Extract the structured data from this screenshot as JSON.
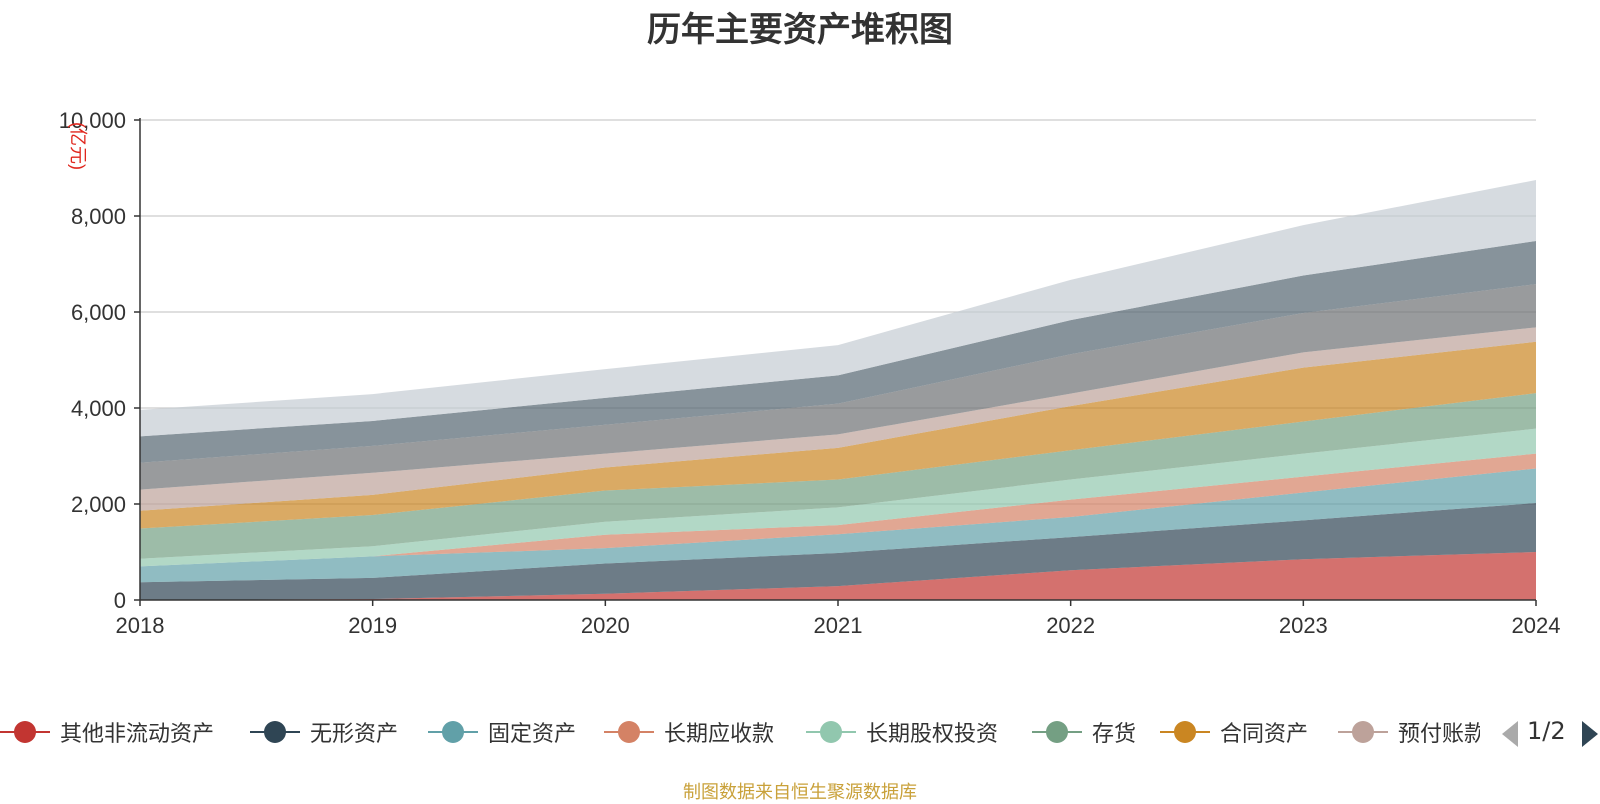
{
  "title": "历年主要资产堆积图",
  "footer": "制图数据来自恒生聚源数据库",
  "legend_page": "1/2",
  "chart_data": {
    "type": "area",
    "stacked": true,
    "title": "历年主要资产堆积图",
    "ylabel": "(亿元)",
    "xlabel": "",
    "x": [
      "2018",
      "2019",
      "2020",
      "2021",
      "2022",
      "2023",
      "2024"
    ],
    "ylim": [
      0,
      10000
    ],
    "yticks": [
      0,
      2000,
      4000,
      6000,
      8000,
      10000
    ],
    "ytick_labels": [
      "0",
      "2,000",
      "4,000",
      "6,000",
      "8,000",
      "10,000"
    ],
    "grid": true,
    "legend_position": "bottom",
    "series": [
      {
        "name": "其他非流动资产",
        "values": [
          0,
          20,
          130,
          290,
          620,
          850,
          1000
        ],
        "color": "#c23531",
        "in_legend": true
      },
      {
        "name": "无形资产",
        "values": [
          370,
          440,
          630,
          690,
          690,
          810,
          1020
        ],
        "color": "#2f4554",
        "in_legend": true
      },
      {
        "name": "固定资产",
        "values": [
          330,
          450,
          320,
          390,
          420,
          580,
          720
        ],
        "color": "#61a0a8",
        "in_legend": true
      },
      {
        "name": "长期应收款",
        "values": [
          0,
          0,
          280,
          190,
          360,
          330,
          310
        ],
        "color": "#d48265",
        "in_legend": true
      },
      {
        "name": "长期股权投资",
        "values": [
          160,
          210,
          270,
          370,
          420,
          480,
          520
        ],
        "color": "#91c7ae",
        "in_legend": true
      },
      {
        "name": "存货",
        "values": [
          630,
          650,
          650,
          580,
          610,
          670,
          740
        ],
        "color": "#749f83",
        "in_legend": true
      },
      {
        "name": "合同资产",
        "values": [
          370,
          420,
          480,
          660,
          920,
          1120,
          1070
        ],
        "color": "#ca8622",
        "in_legend": true
      },
      {
        "name": "预付账款",
        "values": [
          440,
          460,
          290,
          280,
          260,
          320,
          300
        ],
        "color": "#bda29a",
        "in_legend": true
      },
      {
        "name": "",
        "values": [
          560,
          560,
          600,
          640,
          820,
          820,
          900
        ],
        "color": "#6e7074",
        "in_legend": false
      },
      {
        "name": "",
        "values": [
          550,
          520,
          560,
          590,
          710,
          780,
          900
        ],
        "color": "#546570",
        "in_legend": false
      },
      {
        "name": "",
        "values": [
          550,
          560,
          600,
          630,
          840,
          1050,
          1270
        ],
        "color": "#c4ccd3",
        "in_legend": false
      }
    ]
  }
}
